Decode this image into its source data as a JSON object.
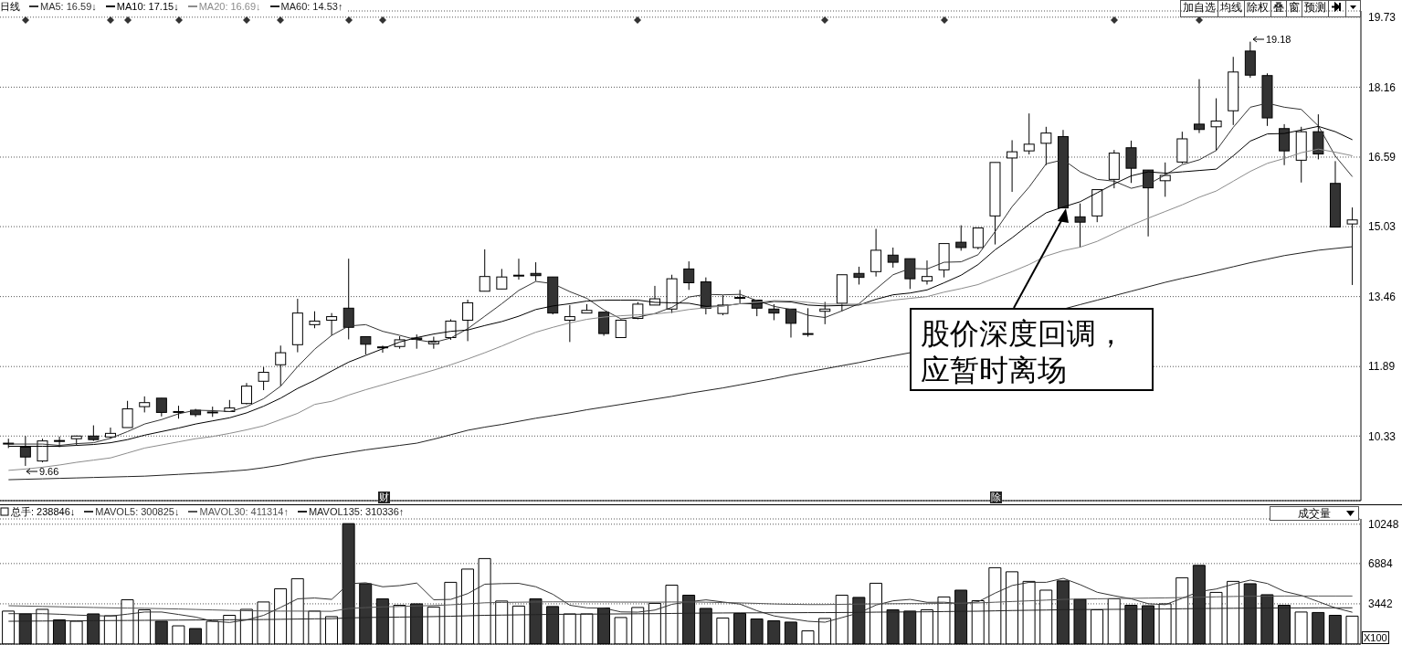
{
  "chart_data": [
    {
      "type": "candlestick",
      "title": "日线",
      "categories": [
        null,
        null,
        null,
        null,
        null,
        null,
        null,
        null,
        null,
        null,
        null,
        null,
        null,
        null,
        null,
        null,
        null,
        null,
        null,
        null,
        null,
        null,
        null,
        null,
        null,
        null,
        null,
        null,
        null,
        null,
        null,
        null,
        null,
        null,
        null,
        null,
        null,
        null,
        null,
        null,
        null,
        null,
        null,
        null,
        null,
        null,
        null,
        null,
        null,
        null,
        null,
        null,
        null,
        null,
        null,
        null,
        null,
        null,
        null,
        null,
        null,
        null,
        null,
        null,
        null,
        null,
        null,
        null,
        null,
        null,
        null,
        null,
        null,
        null,
        null,
        null,
        null,
        null,
        null,
        null
      ],
      "ohlc": [
        [
          10.17,
          10.27,
          10.06,
          10.17
        ],
        [
          10.08,
          10.33,
          9.66,
          9.86
        ],
        [
          9.77,
          10.27,
          9.74,
          10.22
        ],
        [
          10.23,
          10.32,
          10.08,
          10.21
        ],
        [
          10.27,
          10.34,
          10.13,
          10.33
        ],
        [
          10.33,
          10.57,
          10.22,
          10.25
        ],
        [
          10.31,
          10.52,
          10.27,
          10.39
        ],
        [
          10.52,
          11.12,
          10.52,
          10.94
        ],
        [
          10.99,
          11.22,
          10.86,
          11.08
        ],
        [
          11.18,
          11.18,
          10.77,
          10.86
        ],
        [
          10.87,
          11.01,
          10.72,
          10.88
        ],
        [
          10.91,
          10.94,
          10.76,
          10.81
        ],
        [
          10.86,
          10.99,
          10.76,
          10.87
        ],
        [
          10.88,
          11.14,
          10.88,
          10.96
        ],
        [
          11.06,
          11.52,
          11.04,
          11.45
        ],
        [
          11.56,
          11.88,
          11.36,
          11.76
        ],
        [
          11.93,
          12.36,
          11.45,
          12.2
        ],
        [
          12.38,
          13.41,
          12.21,
          13.09
        ],
        [
          12.83,
          13.13,
          12.75,
          12.91
        ],
        [
          12.93,
          13.09,
          12.59,
          13.01
        ],
        [
          13.2,
          14.31,
          12.5,
          12.77
        ],
        [
          12.56,
          12.56,
          12.16,
          12.39
        ],
        [
          12.33,
          12.36,
          12.2,
          12.31
        ],
        [
          12.34,
          12.57,
          12.29,
          12.49
        ],
        [
          12.53,
          12.61,
          12.29,
          12.5
        ],
        [
          12.4,
          12.56,
          12.29,
          12.46
        ],
        [
          12.54,
          12.95,
          12.49,
          12.91
        ],
        [
          12.93,
          13.39,
          12.46,
          13.32
        ],
        [
          13.58,
          14.52,
          13.58,
          13.91
        ],
        [
          13.63,
          14.08,
          13.63,
          13.9
        ],
        [
          13.93,
          14.31,
          13.84,
          13.94
        ],
        [
          13.98,
          14.23,
          13.81,
          13.93
        ],
        [
          13.9,
          13.9,
          13.06,
          13.09
        ],
        [
          12.93,
          13.27,
          12.44,
          13.01
        ],
        [
          13.09,
          13.29,
          13.09,
          13.15
        ],
        [
          13.11,
          13.11,
          12.58,
          12.63
        ],
        [
          12.54,
          12.95,
          12.54,
          12.93
        ],
        [
          12.97,
          13.34,
          12.95,
          13.29
        ],
        [
          13.27,
          13.7,
          13.27,
          13.41
        ],
        [
          13.18,
          13.95,
          13.09,
          13.86
        ],
        [
          14.08,
          14.25,
          13.61,
          13.77
        ],
        [
          13.79,
          13.89,
          13.06,
          13.2
        ],
        [
          13.08,
          13.49,
          13.04,
          13.27
        ],
        [
          13.44,
          13.61,
          13.31,
          13.43
        ],
        [
          13.38,
          13.38,
          13.02,
          13.2
        ],
        [
          13.18,
          13.29,
          12.93,
          13.09
        ],
        [
          13.18,
          13.18,
          12.54,
          12.86
        ],
        [
          12.62,
          13.2,
          12.56,
          12.63
        ],
        [
          13.13,
          13.34,
          12.84,
          13.18
        ],
        [
          13.31,
          13.95,
          13.13,
          13.95
        ],
        [
          13.98,
          14.13,
          13.73,
          13.89
        ],
        [
          14.02,
          14.98,
          13.91,
          14.5
        ],
        [
          14.39,
          14.56,
          14.11,
          14.23
        ],
        [
          14.31,
          14.31,
          13.63,
          13.86
        ],
        [
          13.81,
          14.27,
          13.73,
          13.91
        ],
        [
          14.06,
          14.65,
          13.89,
          14.65
        ],
        [
          14.68,
          15.06,
          14.49,
          14.56
        ],
        [
          14.56,
          15.0,
          14.52,
          15.0
        ],
        [
          15.27,
          16.47,
          14.63,
          16.47
        ],
        [
          16.57,
          16.97,
          15.81,
          16.71
        ],
        [
          16.73,
          17.57,
          16.65,
          16.88
        ],
        [
          16.9,
          17.27,
          16.41,
          17.13
        ],
        [
          17.05,
          17.2,
          15.45,
          15.45
        ],
        [
          15.25,
          15.55,
          14.56,
          15.13
        ],
        [
          15.27,
          15.86,
          15.13,
          15.86
        ],
        [
          16.09,
          16.75,
          15.89,
          16.68
        ],
        [
          16.8,
          16.96,
          16.01,
          16.34
        ],
        [
          16.3,
          16.3,
          14.81,
          15.9
        ],
        [
          16.06,
          16.47,
          15.7,
          16.18
        ],
        [
          16.48,
          17.16,
          16.44,
          17.0
        ],
        [
          17.33,
          18.34,
          17.13,
          17.21
        ],
        [
          17.27,
          17.91,
          16.73,
          17.4
        ],
        [
          17.63,
          18.84,
          17.31,
          18.5
        ],
        [
          18.97,
          19.18,
          18.37,
          18.43
        ],
        [
          18.42,
          18.47,
          17.29,
          17.47
        ],
        [
          17.23,
          17.33,
          16.41,
          16.73
        ],
        [
          16.52,
          17.27,
          16.02,
          17.16
        ],
        [
          17.16,
          17.55,
          16.54,
          16.66
        ],
        [
          16.0,
          16.5,
          15.02,
          15.02
        ],
        [
          15.09,
          15.46,
          13.72,
          15.18
        ]
      ],
      "series": [
        {
          "name": "MA5: 16.59↓",
          "type": "line",
          "color": "#333333",
          "values": [
            10.15,
            10.15,
            10.15,
            10.12,
            10.16,
            10.18,
            10.28,
            10.43,
            10.6,
            10.7,
            10.83,
            10.91,
            10.9,
            10.88,
            10.99,
            11.17,
            11.45,
            11.89,
            12.28,
            12.59,
            12.8,
            12.83,
            12.68,
            12.59,
            12.49,
            12.43,
            12.53,
            12.74,
            13.02,
            13.3,
            13.6,
            13.8,
            13.75,
            13.57,
            13.42,
            13.16,
            12.96,
            13.0,
            13.08,
            13.22,
            13.45,
            13.51,
            13.5,
            13.51,
            13.37,
            13.24,
            13.17,
            13.04,
            12.99,
            13.14,
            13.3,
            13.63,
            13.95,
            14.09,
            14.08,
            14.23,
            14.24,
            14.4,
            14.92,
            15.48,
            15.92,
            16.44,
            16.53,
            16.26,
            16.09,
            16.05,
            15.89,
            15.98,
            16.19,
            16.42,
            16.53,
            16.74,
            17.26,
            17.71,
            17.8,
            17.71,
            17.66,
            17.29,
            16.61,
            16.15
          ]
        },
        {
          "name": "MA10: 17.15↓",
          "type": "line",
          "color": "#000000",
          "values": [
            10.1,
            10.1,
            10.1,
            10.1,
            10.12,
            10.14,
            10.18,
            10.25,
            10.35,
            10.43,
            10.51,
            10.6,
            10.67,
            10.74,
            10.85,
            11.0,
            11.18,
            11.4,
            11.58,
            11.79,
            11.99,
            12.14,
            12.29,
            12.44,
            12.54,
            12.62,
            12.68,
            12.71,
            12.81,
            12.9,
            13.02,
            13.17,
            13.25,
            13.3,
            13.36,
            13.38,
            13.38,
            13.38,
            13.33,
            13.32,
            13.31,
            13.24,
            13.25,
            13.3,
            13.3,
            13.35,
            13.34,
            13.27,
            13.25,
            13.26,
            13.27,
            13.4,
            13.5,
            13.54,
            13.61,
            13.77,
            13.94,
            14.18,
            14.51,
            14.78,
            15.08,
            15.34,
            15.47,
            15.59,
            15.79,
            15.99,
            16.17,
            16.26,
            16.23,
            16.26,
            16.29,
            16.32,
            16.62,
            16.95,
            17.11,
            17.12,
            17.2,
            17.28,
            17.16,
            16.98
          ]
        },
        {
          "name": "MA20: 16.69↓",
          "type": "line",
          "color": "#8c8c8c",
          "values": [
            9.56,
            9.59,
            9.63,
            9.68,
            9.74,
            9.79,
            9.84,
            9.95,
            10.06,
            10.13,
            10.2,
            10.27,
            10.32,
            10.39,
            10.47,
            10.56,
            10.7,
            10.84,
            11.04,
            11.11,
            11.25,
            11.37,
            11.48,
            11.59,
            11.7,
            11.81,
            11.93,
            12.06,
            12.2,
            12.35,
            12.51,
            12.66,
            12.77,
            12.87,
            12.95,
            13.0,
            13.03,
            13.05,
            13.07,
            13.11,
            13.17,
            13.21,
            13.25,
            13.3,
            13.33,
            13.37,
            13.36,
            13.33,
            13.29,
            13.29,
            13.29,
            13.32,
            13.38,
            13.42,
            13.46,
            13.56,
            13.64,
            13.73,
            13.88,
            14.02,
            14.18,
            14.37,
            14.49,
            14.57,
            14.7,
            14.88,
            15.06,
            15.22,
            15.37,
            15.52,
            15.69,
            15.83,
            16.05,
            16.27,
            16.45,
            16.56,
            16.69,
            16.77,
            16.7,
            16.62
          ]
        },
        {
          "name": "MA60: 14.53↑",
          "type": "line",
          "color": "#222222",
          "values": [
            9.35,
            9.36,
            9.37,
            9.38,
            9.39,
            9.4,
            9.41,
            9.42,
            9.43,
            9.45,
            9.47,
            9.49,
            9.51,
            9.54,
            9.57,
            9.62,
            9.68,
            9.76,
            9.84,
            9.9,
            9.96,
            10.02,
            10.07,
            10.12,
            10.17,
            10.26,
            10.36,
            10.46,
            10.53,
            10.59,
            10.66,
            10.73,
            10.79,
            10.85,
            10.92,
            10.98,
            11.04,
            11.1,
            11.16,
            11.22,
            11.29,
            11.35,
            11.41,
            11.48,
            11.55,
            11.62,
            11.7,
            11.77,
            11.84,
            11.91,
            11.98,
            12.06,
            12.13,
            12.2,
            null,
            null,
            null,
            null,
            null,
            null,
            null,
            null,
            13.18,
            13.28,
            13.38,
            13.48,
            13.58,
            13.68,
            13.78,
            13.87,
            13.95,
            14.04,
            14.13,
            14.22,
            14.3,
            14.38,
            14.44,
            14.5,
            14.54,
            14.58
          ]
        }
      ],
      "ylim": [
        8.88,
        19.87
      ],
      "yticks": [
        10.33,
        11.89,
        13.46,
        15.03,
        16.59,
        18.16,
        19.73
      ],
      "grid": "y",
      "legend": "top left",
      "tick_labels": "y",
      "annotations": [
        {
          "text": "9.66",
          "y": 9.66
        },
        "19.18",
        "股价深度回调，应暂时离场",
        "财",
        "除",
        "加自选",
        "均线",
        "除权",
        "叠",
        "窗",
        "预测"
      ]
    },
    {
      "type": "bar",
      "categories": [
        null,
        null,
        null,
        null,
        null,
        null,
        null,
        null,
        null,
        null,
        null,
        null,
        null,
        null,
        null,
        null,
        null,
        null,
        null,
        null,
        null,
        null,
        null,
        null,
        null,
        null,
        null,
        null,
        null,
        null,
        null,
        null,
        null,
        null,
        null,
        null,
        null,
        null,
        null,
        null,
        null,
        null,
        null,
        null,
        null,
        null,
        null,
        null,
        null,
        null,
        null,
        null,
        null,
        null,
        null,
        null,
        null,
        null,
        null,
        null,
        null,
        null,
        null,
        null,
        null,
        null,
        null,
        null,
        null,
        null,
        null,
        null,
        null,
        null,
        null,
        null,
        null,
        null,
        null,
        null
      ],
      "series": [
        {
          "name": "总手: 238846↓",
          "type": "bar",
          "values": [
            2820,
            2580,
            2970,
            2070,
            1950,
            2580,
            2420,
            3790,
            2930,
            1950,
            1560,
            1330,
            1950,
            2460,
            2970,
            3600,
            4730,
            5590,
            2820,
            2350,
            10300,
            5160,
            3870,
            3320,
            3440,
            3170,
            5280,
            6410,
            7310,
            3680,
            3250,
            3870,
            3210,
            2580,
            2580,
            3090,
            2270,
            3130,
            3480,
            5040,
            4180,
            3050,
            2230,
            2620,
            2150,
            1990,
            1880,
            1130,
            2190,
            4180,
            3990,
            5200,
            2930,
            2820,
            2930,
            4030,
            4610,
            3710,
            6530,
            6180,
            5360,
            4610,
            5400,
            3830,
            2930,
            3870,
            3320,
            3280,
            3440,
            5670,
            6730,
            4420,
            5360,
            5160,
            4220,
            3320,
            2740,
            2700,
            2460,
            2390
          ],
          "colors": [
            "#ffffff",
            "#333333",
            "#ffffff",
            "#333333",
            "#ffffff",
            "#333333",
            "#ffffff",
            "#ffffff",
            "#ffffff",
            "#333333",
            "#ffffff",
            "#333333",
            "#ffffff",
            "#ffffff",
            "#ffffff",
            "#ffffff",
            "#ffffff",
            "#ffffff",
            "#ffffff",
            "#ffffff",
            "#333333",
            "#333333",
            "#333333",
            "#ffffff",
            "#333333",
            "#ffffff",
            "#ffffff",
            "#ffffff",
            "#ffffff",
            "#ffffff",
            "#ffffff",
            "#333333",
            "#333333",
            "#ffffff",
            "#ffffff",
            "#333333",
            "#ffffff",
            "#ffffff",
            "#ffffff",
            "#ffffff",
            "#333333",
            "#333333",
            "#ffffff",
            "#333333",
            "#333333",
            "#333333",
            "#333333",
            "#ffffff",
            "#ffffff",
            "#ffffff",
            "#333333",
            "#ffffff",
            "#333333",
            "#333333",
            "#ffffff",
            "#ffffff",
            "#333333",
            "#ffffff",
            "#ffffff",
            "#ffffff",
            "#ffffff",
            "#ffffff",
            "#333333",
            "#333333",
            "#ffffff",
            "#ffffff",
            "#333333",
            "#333333",
            "#ffffff",
            "#ffffff",
            "#333333",
            "#ffffff",
            "#ffffff",
            "#333333",
            "#333333",
            "#333333",
            "#ffffff",
            "#333333",
            "#333333",
            "#ffffff"
          ]
        },
        {
          "name": "MAVOL5: 300825↓",
          "type": "line",
          "color": "#333333",
          "values": [
            2600,
            2600,
            2600,
            2550,
            2480,
            2430,
            2400,
            2560,
            2740,
            2740,
            2530,
            2310,
            1950,
            1850,
            2060,
            2460,
            3140,
            3870,
            3940,
            3820,
            5160,
            5240,
            4900,
            5000,
            5220,
            3790,
            3820,
            4320,
            5120,
            5170,
            5190,
            4900,
            4260,
            3320,
            3100,
            3070,
            2750,
            2730,
            2910,
            3400,
            3620,
            3780,
            3600,
            3420,
            2850,
            2410,
            2170,
            1950,
            1870,
            2270,
            2670,
            3340,
            3700,
            3820,
            3570,
            3580,
            3460,
            3620,
            4360,
            5010,
            5280,
            5280,
            5620,
            5080,
            4430,
            4130,
            3870,
            3450,
            3370,
            3920,
            4490,
            4710,
            5120,
            5470,
            5180,
            4500,
            4160,
            3630,
            3090,
            2720
          ]
        },
        {
          "name": "MAVOL30: 411314↑",
          "type": "line",
          "color": "#555555",
          "values": [
            3280,
            3250,
            3220,
            3190,
            3160,
            3130,
            3100,
            3080,
            3060,
            3030,
            3000,
            2960,
            2920,
            2880,
            2850,
            2830,
            2820,
            2820,
            2810,
            2800,
            3050,
            3120,
            3180,
            3220,
            3260,
            3300,
            3360,
            3440,
            3530,
            3560,
            3580,
            3600,
            3610,
            3610,
            3600,
            3600,
            3590,
            3590,
            3580,
            3600,
            3600,
            3580,
            3550,
            3520,
            3480,
            3430,
            3400,
            3380,
            3380,
            3400,
            3420,
            3440,
            3450,
            3460,
            3460,
            3480,
            3500,
            3520,
            3580,
            3640,
            3700,
            3760,
            3820,
            3850,
            3870,
            3890,
            3910,
            3930,
            3950,
            3980,
            4010,
            4040,
            4070,
            4090,
            4100,
            4110,
            4110,
            4110,
            4110,
            4110
          ]
        },
        {
          "name": "MAVOL135: 310336↑",
          "type": "line",
          "color": "#222222",
          "values": [
            1950,
            1960,
            1970,
            1980,
            1990,
            2000,
            2010,
            2020,
            2030,
            2040,
            2050,
            2060,
            2070,
            2080,
            2090,
            2100,
            2120,
            2140,
            2160,
            2170,
            2240,
            2270,
            2290,
            2310,
            2330,
            2350,
            2380,
            2420,
            2460,
            2480,
            2500,
            2520,
            2540,
            2550,
            2560,
            2570,
            2580,
            2590,
            2600,
            2620,
            2640,
            2650,
            2660,
            2670,
            2670,
            2680,
            2680,
            2690,
            2690,
            2700,
            2710,
            2730,
            2740,
            2750,
            2760,
            2780,
            2800,
            2810,
            2840,
            2870,
            2890,
            2910,
            2940,
            2950,
            2960,
            2970,
            2980,
            2990,
            3000,
            3020,
            3040,
            3050,
            3060,
            3070,
            3080,
            3090,
            3090,
            3100,
            3100,
            3100
          ]
        }
      ],
      "ylim": [
        0,
        10700
      ],
      "yticks": [
        3442,
        6884,
        10248
      ],
      "grid": "y",
      "legend": "top left",
      "tick_labels": "y",
      "ylabel": "X100",
      "annotations": [
        "成交量"
      ]
    }
  ]
}
